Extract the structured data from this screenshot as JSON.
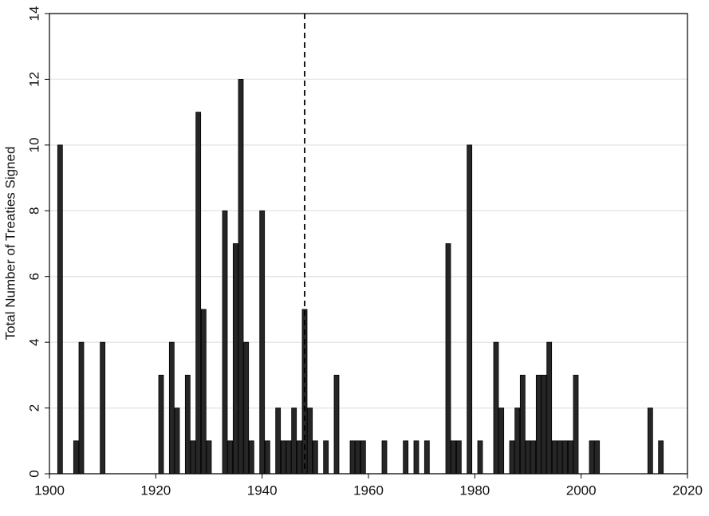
{
  "chart_data": {
    "type": "bar",
    "y_label": "Total Number of Treaties Signed",
    "x": [
      1902,
      1905,
      1906,
      1910,
      1921,
      1923,
      1924,
      1926,
      1927,
      1928,
      1929,
      1930,
      1933,
      1934,
      1935,
      1936,
      1937,
      1938,
      1940,
      1941,
      1943,
      1944,
      1945,
      1946,
      1947,
      1948,
      1949,
      1950,
      1952,
      1954,
      1957,
      1958,
      1959,
      1963,
      1967,
      1969,
      1971,
      1975,
      1976,
      1977,
      1979,
      1981,
      1984,
      1985,
      1987,
      1988,
      1989,
      1990,
      1991,
      1992,
      1993,
      1994,
      1995,
      1996,
      1997,
      1998,
      1999,
      2002,
      2003,
      2013,
      2015
    ],
    "values": [
      10,
      1,
      4,
      4,
      3,
      4,
      2,
      3,
      1,
      11,
      5,
      1,
      8,
      1,
      7,
      12,
      4,
      1,
      8,
      1,
      2,
      1,
      1,
      2,
      1,
      5,
      2,
      1,
      1,
      3,
      1,
      1,
      1,
      1,
      1,
      1,
      1,
      7,
      1,
      1,
      10,
      1,
      4,
      2,
      1,
      2,
      3,
      1,
      1,
      3,
      3,
      4,
      1,
      1,
      1,
      1,
      3,
      1,
      1,
      2,
      1
    ],
    "color": "#262626",
    "xlim": [
      1900,
      2020
    ],
    "xticks": [
      1900,
      1920,
      1940,
      1960,
      1980,
      2000,
      2020
    ],
    "ylim": [
      0,
      14
    ],
    "yticks": [
      0,
      2,
      4,
      6,
      8,
      10,
      12,
      14
    ],
    "grid": true,
    "vline": 1948
  }
}
